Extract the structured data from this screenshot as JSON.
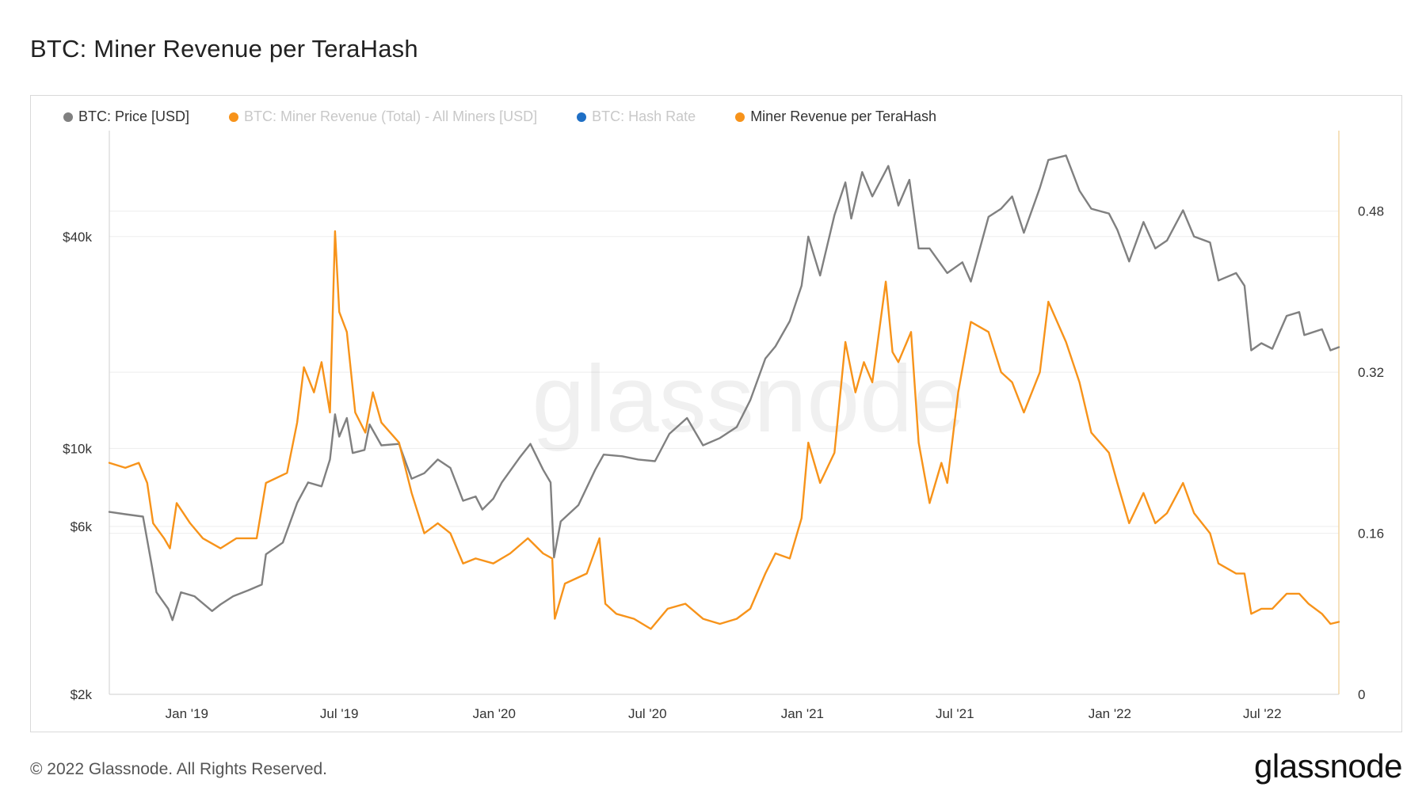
{
  "page": {
    "title": "BTC: Miner Revenue per TeraHash",
    "copyright": "© 2022 Glassnode. All Rights Reserved.",
    "logo": "glassnode",
    "watermark": "glassnode"
  },
  "colors": {
    "price": "#808080",
    "revenue": "#f7931a",
    "hashrate": "#1f6fc5",
    "revenue_per_th": "#f7931a",
    "grid": "#ededed",
    "right_axis": "#f4d7a6"
  },
  "chart_data": {
    "type": "line",
    "title": "BTC: Miner Revenue per TeraHash",
    "legend_position": "top-left",
    "grid": true,
    "legend": [
      {
        "name": "BTC: Price [USD]",
        "color": "#808080",
        "active": true
      },
      {
        "name": "BTC: Miner Revenue (Total) - All Miners [USD]",
        "color": "#f7931a",
        "active": false
      },
      {
        "name": "BTC: Hash Rate",
        "color": "#1f6fc5",
        "active": false
      },
      {
        "name": "Miner Revenue per TeraHash",
        "color": "#f7931a",
        "active": true
      }
    ],
    "x_axis": {
      "type": "date",
      "range": [
        "2018-10-01",
        "2022-09-30"
      ],
      "ticks": [
        {
          "date": "2019-01-01",
          "label": "Jan '19"
        },
        {
          "date": "2019-07-01",
          "label": "Jul '19"
        },
        {
          "date": "2020-01-01",
          "label": "Jan '20"
        },
        {
          "date": "2020-07-01",
          "label": "Jul '20"
        },
        {
          "date": "2021-01-01",
          "label": "Jan '21"
        },
        {
          "date": "2021-07-01",
          "label": "Jul '21"
        },
        {
          "date": "2022-01-01",
          "label": "Jan '22"
        },
        {
          "date": "2022-07-01",
          "label": "Jul '22"
        }
      ]
    },
    "y_left": {
      "scale": "log",
      "range": [
        2000,
        80000
      ],
      "ticks": [
        {
          "value": 2000,
          "label": "$2k"
        },
        {
          "value": 6000,
          "label": "$6k"
        },
        {
          "value": 10000,
          "label": "$10k"
        },
        {
          "value": 40000,
          "label": "$40k"
        }
      ]
    },
    "y_right": {
      "scale": "linear",
      "range": [
        0,
        0.56
      ],
      "ticks": [
        {
          "value": 0,
          "label": "0"
        },
        {
          "value": 0.16,
          "label": "0.16"
        },
        {
          "value": 0.32,
          "label": "0.32"
        },
        {
          "value": 0.48,
          "label": "0.48"
        }
      ]
    },
    "series": [
      {
        "name": "BTC: Price [USD]",
        "axis": "left",
        "color": "#808080",
        "points": [
          [
            "2018-10-01",
            6600
          ],
          [
            "2018-10-20",
            6500
          ],
          [
            "2018-11-10",
            6400
          ],
          [
            "2018-11-20",
            4700
          ],
          [
            "2018-11-26",
            3900
          ],
          [
            "2018-12-10",
            3500
          ],
          [
            "2018-12-15",
            3250
          ],
          [
            "2018-12-25",
            3900
          ],
          [
            "2019-01-10",
            3800
          ],
          [
            "2019-01-31",
            3450
          ],
          [
            "2019-02-10",
            3600
          ],
          [
            "2019-02-25",
            3800
          ],
          [
            "2019-03-15",
            3950
          ],
          [
            "2019-03-31",
            4100
          ],
          [
            "2019-04-05",
            5000
          ],
          [
            "2019-04-25",
            5400
          ],
          [
            "2019-05-12",
            7000
          ],
          [
            "2019-05-25",
            8000
          ],
          [
            "2019-06-10",
            7800
          ],
          [
            "2019-06-20",
            9300
          ],
          [
            "2019-06-26",
            12500
          ],
          [
            "2019-07-01",
            10800
          ],
          [
            "2019-07-10",
            12200
          ],
          [
            "2019-07-17",
            9700
          ],
          [
            "2019-07-31",
            9900
          ],
          [
            "2019-08-06",
            11700
          ],
          [
            "2019-08-20",
            10200
          ],
          [
            "2019-09-10",
            10300
          ],
          [
            "2019-09-25",
            8200
          ],
          [
            "2019-10-10",
            8500
          ],
          [
            "2019-10-26",
            9300
          ],
          [
            "2019-11-10",
            8800
          ],
          [
            "2019-11-25",
            7100
          ],
          [
            "2019-12-10",
            7300
          ],
          [
            "2019-12-18",
            6700
          ],
          [
            "2019-12-31",
            7200
          ],
          [
            "2020-01-10",
            8000
          ],
          [
            "2020-01-31",
            9400
          ],
          [
            "2020-02-13",
            10300
          ],
          [
            "2020-02-28",
            8700
          ],
          [
            "2020-03-08",
            8000
          ],
          [
            "2020-03-12",
            4900
          ],
          [
            "2020-03-20",
            6200
          ],
          [
            "2020-04-10",
            6900
          ],
          [
            "2020-04-30",
            8700
          ],
          [
            "2020-05-10",
            9600
          ],
          [
            "2020-06-01",
            9500
          ],
          [
            "2020-06-20",
            9300
          ],
          [
            "2020-07-10",
            9200
          ],
          [
            "2020-07-27",
            11000
          ],
          [
            "2020-08-17",
            12200
          ],
          [
            "2020-09-05",
            10200
          ],
          [
            "2020-09-25",
            10700
          ],
          [
            "2020-10-15",
            11500
          ],
          [
            "2020-10-31",
            13700
          ],
          [
            "2020-11-18",
            18000
          ],
          [
            "2020-11-30",
            19500
          ],
          [
            "2020-12-17",
            23000
          ],
          [
            "2020-12-31",
            29000
          ],
          [
            "2021-01-08",
            40000
          ],
          [
            "2021-01-22",
            31000
          ],
          [
            "2021-02-08",
            46000
          ],
          [
            "2021-02-21",
            57000
          ],
          [
            "2021-02-28",
            45000
          ],
          [
            "2021-03-13",
            61000
          ],
          [
            "2021-03-25",
            52000
          ],
          [
            "2021-04-13",
            63500
          ],
          [
            "2021-04-25",
            49000
          ],
          [
            "2021-05-08",
            58000
          ],
          [
            "2021-05-19",
            37000
          ],
          [
            "2021-06-01",
            37000
          ],
          [
            "2021-06-22",
            31500
          ],
          [
            "2021-07-10",
            33800
          ],
          [
            "2021-07-20",
            29800
          ],
          [
            "2021-08-10",
            45500
          ],
          [
            "2021-08-25",
            48000
          ],
          [
            "2021-09-07",
            52000
          ],
          [
            "2021-09-21",
            41000
          ],
          [
            "2021-10-10",
            55000
          ],
          [
            "2021-10-20",
            66000
          ],
          [
            "2021-11-10",
            68000
          ],
          [
            "2021-11-26",
            54000
          ],
          [
            "2021-12-10",
            48000
          ],
          [
            "2021-12-31",
            46500
          ],
          [
            "2022-01-10",
            41800
          ],
          [
            "2022-01-24",
            34000
          ],
          [
            "2022-02-10",
            44000
          ],
          [
            "2022-02-24",
            37000
          ],
          [
            "2022-03-10",
            39000
          ],
          [
            "2022-03-29",
            47500
          ],
          [
            "2022-04-11",
            40000
          ],
          [
            "2022-04-30",
            38500
          ],
          [
            "2022-05-10",
            30000
          ],
          [
            "2022-05-31",
            31500
          ],
          [
            "2022-06-10",
            29000
          ],
          [
            "2022-06-18",
            19000
          ],
          [
            "2022-06-30",
            19900
          ],
          [
            "2022-07-13",
            19200
          ],
          [
            "2022-07-30",
            23800
          ],
          [
            "2022-08-14",
            24400
          ],
          [
            "2022-08-20",
            21000
          ],
          [
            "2022-09-10",
            21800
          ],
          [
            "2022-09-20",
            19000
          ],
          [
            "2022-09-30",
            19400
          ]
        ]
      },
      {
        "name": "Miner Revenue per TeraHash",
        "axis": "right",
        "color": "#f7931a",
        "points": [
          [
            "2018-10-01",
            0.23
          ],
          [
            "2018-10-20",
            0.225
          ],
          [
            "2018-11-05",
            0.23
          ],
          [
            "2018-11-15",
            0.21
          ],
          [
            "2018-11-22",
            0.17
          ],
          [
            "2018-12-05",
            0.155
          ],
          [
            "2018-12-12",
            0.145
          ],
          [
            "2018-12-20",
            0.19
          ],
          [
            "2019-01-05",
            0.17
          ],
          [
            "2019-01-20",
            0.155
          ],
          [
            "2019-02-10",
            0.145
          ],
          [
            "2019-03-01",
            0.155
          ],
          [
            "2019-03-25",
            0.155
          ],
          [
            "2019-04-05",
            0.21
          ],
          [
            "2019-04-30",
            0.22
          ],
          [
            "2019-05-12",
            0.27
          ],
          [
            "2019-05-20",
            0.325
          ],
          [
            "2019-06-01",
            0.3
          ],
          [
            "2019-06-10",
            0.33
          ],
          [
            "2019-06-20",
            0.28
          ],
          [
            "2019-06-26",
            0.46
          ],
          [
            "2019-07-01",
            0.38
          ],
          [
            "2019-07-10",
            0.36
          ],
          [
            "2019-07-20",
            0.28
          ],
          [
            "2019-08-01",
            0.26
          ],
          [
            "2019-08-10",
            0.3
          ],
          [
            "2019-08-20",
            0.27
          ],
          [
            "2019-09-10",
            0.25
          ],
          [
            "2019-09-25",
            0.2
          ],
          [
            "2019-10-10",
            0.16
          ],
          [
            "2019-10-26",
            0.17
          ],
          [
            "2019-11-10",
            0.16
          ],
          [
            "2019-11-25",
            0.13
          ],
          [
            "2019-12-10",
            0.135
          ],
          [
            "2019-12-31",
            0.13
          ],
          [
            "2020-01-20",
            0.14
          ],
          [
            "2020-02-10",
            0.155
          ],
          [
            "2020-02-28",
            0.14
          ],
          [
            "2020-03-10",
            0.135
          ],
          [
            "2020-03-13",
            0.075
          ],
          [
            "2020-03-25",
            0.11
          ],
          [
            "2020-04-20",
            0.12
          ],
          [
            "2020-05-05",
            0.155
          ],
          [
            "2020-05-12",
            0.09
          ],
          [
            "2020-05-25",
            0.08
          ],
          [
            "2020-06-15",
            0.075
          ],
          [
            "2020-07-05",
            0.065
          ],
          [
            "2020-07-25",
            0.085
          ],
          [
            "2020-08-15",
            0.09
          ],
          [
            "2020-09-05",
            0.075
          ],
          [
            "2020-09-25",
            0.07
          ],
          [
            "2020-10-15",
            0.075
          ],
          [
            "2020-10-31",
            0.085
          ],
          [
            "2020-11-18",
            0.12
          ],
          [
            "2020-11-30",
            0.14
          ],
          [
            "2020-12-17",
            0.135
          ],
          [
            "2020-12-31",
            0.175
          ],
          [
            "2021-01-08",
            0.25
          ],
          [
            "2021-01-22",
            0.21
          ],
          [
            "2021-02-08",
            0.24
          ],
          [
            "2021-02-21",
            0.35
          ],
          [
            "2021-03-05",
            0.3
          ],
          [
            "2021-03-15",
            0.33
          ],
          [
            "2021-03-25",
            0.31
          ],
          [
            "2021-04-10",
            0.41
          ],
          [
            "2021-04-18",
            0.34
          ],
          [
            "2021-04-25",
            0.33
          ],
          [
            "2021-05-10",
            0.36
          ],
          [
            "2021-05-19",
            0.25
          ],
          [
            "2021-06-01",
            0.19
          ],
          [
            "2021-06-15",
            0.23
          ],
          [
            "2021-06-22",
            0.21
          ],
          [
            "2021-07-05",
            0.3
          ],
          [
            "2021-07-20",
            0.37
          ],
          [
            "2021-08-10",
            0.36
          ],
          [
            "2021-08-25",
            0.32
          ],
          [
            "2021-09-07",
            0.31
          ],
          [
            "2021-09-21",
            0.28
          ],
          [
            "2021-10-10",
            0.32
          ],
          [
            "2021-10-20",
            0.39
          ],
          [
            "2021-11-10",
            0.35
          ],
          [
            "2021-11-26",
            0.31
          ],
          [
            "2021-12-10",
            0.26
          ],
          [
            "2021-12-31",
            0.24
          ],
          [
            "2022-01-10",
            0.21
          ],
          [
            "2022-01-24",
            0.17
          ],
          [
            "2022-02-10",
            0.2
          ],
          [
            "2022-02-24",
            0.17
          ],
          [
            "2022-03-10",
            0.18
          ],
          [
            "2022-03-29",
            0.21
          ],
          [
            "2022-04-11",
            0.18
          ],
          [
            "2022-04-30",
            0.16
          ],
          [
            "2022-05-10",
            0.13
          ],
          [
            "2022-05-31",
            0.12
          ],
          [
            "2022-06-10",
            0.12
          ],
          [
            "2022-06-18",
            0.08
          ],
          [
            "2022-06-30",
            0.085
          ],
          [
            "2022-07-13",
            0.085
          ],
          [
            "2022-07-30",
            0.1
          ],
          [
            "2022-08-14",
            0.1
          ],
          [
            "2022-08-25",
            0.09
          ],
          [
            "2022-09-10",
            0.08
          ],
          [
            "2022-09-20",
            0.07
          ],
          [
            "2022-09-30",
            0.072
          ]
        ]
      }
    ]
  }
}
